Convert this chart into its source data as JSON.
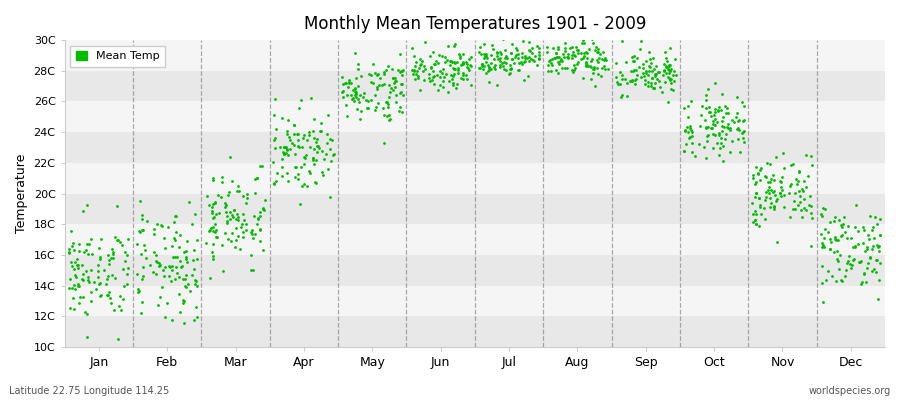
{
  "title": "Monthly Mean Temperatures 1901 - 2009",
  "ylabel": "Temperature",
  "ylim": [
    10,
    30
  ],
  "ytick_labels": [
    "10C",
    "12C",
    "14C",
    "16C",
    "18C",
    "20C",
    "22C",
    "24C",
    "26C",
    "28C",
    "30C"
  ],
  "ytick_values": [
    10,
    12,
    14,
    16,
    18,
    20,
    22,
    24,
    26,
    28,
    30
  ],
  "month_labels": [
    "Jan",
    "Feb",
    "Mar",
    "Apr",
    "May",
    "Jun",
    "Jul",
    "Aug",
    "Sep",
    "Oct",
    "Nov",
    "Dec"
  ],
  "mean_temps": [
    14.8,
    15.2,
    18.5,
    22.8,
    26.8,
    28.2,
    28.8,
    28.7,
    27.8,
    24.5,
    20.0,
    16.5
  ],
  "std_temps": [
    1.6,
    1.8,
    1.6,
    1.3,
    1.0,
    0.7,
    0.6,
    0.6,
    0.8,
    1.0,
    1.2,
    1.4
  ],
  "dot_color": "#00bb00",
  "dot_size": 4,
  "legend_label": "Mean Temp",
  "bottom_left": "Latitude 22.75 Longitude 114.25",
  "bottom_right": "worldspecies.org",
  "bg_color": "#ffffff",
  "band_color_light": "#f5f5f5",
  "band_color_dark": "#e8e8e8",
  "grid_line_color": "#888888",
  "n_years": 109,
  "seed": 42
}
